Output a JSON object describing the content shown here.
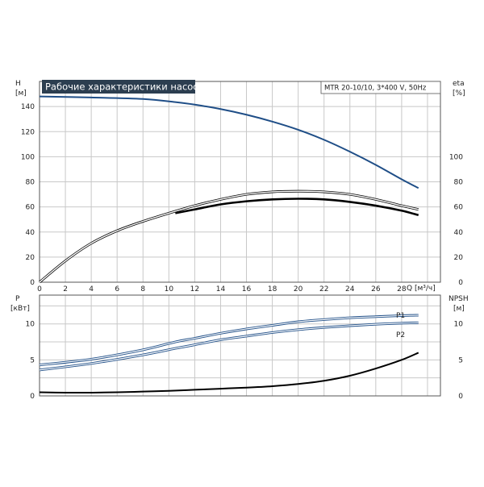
{
  "header": {
    "title": "Рабочие характеристики насоса",
    "model": "MTR 20-10/10, 3*400 V, 50Hz"
  },
  "colors": {
    "blue": "#1f4e87",
    "black": "#000000",
    "grid": "#c8c8c8",
    "title_bg": "#2c3e50"
  },
  "chart_data": [
    {
      "type": "line",
      "name": "head-efficiency",
      "x_ticks": [
        0,
        2,
        4,
        6,
        8,
        10,
        12,
        14,
        16,
        18,
        20,
        22,
        24,
        26,
        28
      ],
      "xlabel": "Q [м³/ч]",
      "xlim": [
        0,
        31
      ],
      "y_left": {
        "label": [
          "H",
          "[м]"
        ],
        "ticks": [
          0,
          20,
          40,
          60,
          80,
          100,
          120,
          140
        ],
        "lim": [
          0,
          160
        ]
      },
      "y_right": {
        "label": [
          "eta",
          "[%]"
        ],
        "ticks": [
          0,
          20,
          40,
          60,
          80,
          100
        ],
        "lim": [
          0,
          160
        ]
      },
      "grid": true,
      "series": [
        {
          "axis": "left",
          "style": "blue",
          "x": [
            0,
            4,
            8,
            10.5,
            12,
            14,
            16,
            18,
            20,
            22,
            24,
            26,
            28,
            29.3
          ],
          "y": [
            148,
            147.2,
            146,
            143.5,
            141.5,
            138,
            133.5,
            128,
            121.5,
            113.5,
            104,
            93.5,
            82,
            75
          ]
        },
        {
          "axis": "right",
          "style": "black-outline",
          "x": [
            0,
            2,
            4,
            6,
            8,
            10,
            12,
            14,
            16,
            18,
            20,
            22,
            24,
            26,
            28,
            29.3
          ],
          "y": [
            0,
            17,
            31,
            41,
            48.5,
            55,
            61,
            66,
            70,
            72,
            72.5,
            72,
            70,
            66,
            61,
            58
          ]
        },
        {
          "axis": "right",
          "style": "black-thick",
          "x": [
            10.5,
            12,
            14,
            16,
            18,
            20,
            22,
            24,
            26,
            28,
            29.3
          ],
          "y": [
            55,
            58,
            62,
            64.5,
            66,
            66.5,
            66,
            64,
            61,
            57,
            53.5
          ]
        }
      ]
    },
    {
      "type": "line",
      "name": "power-npsh",
      "x_ticks": [
        0,
        2,
        4,
        6,
        8,
        10,
        12,
        14,
        16,
        18,
        20,
        22,
        24,
        26,
        28
      ],
      "xlim": [
        0,
        31
      ],
      "y_left": {
        "label": [
          "P",
          "[кВт]"
        ],
        "ticks": [
          0,
          5,
          10
        ],
        "lim": [
          0,
          14
        ]
      },
      "y_right": {
        "label": [
          "NPSH",
          "[м]"
        ],
        "ticks": [
          0,
          5,
          10
        ],
        "lim": [
          0,
          14
        ]
      },
      "grid": true,
      "series": [
        {
          "name": "P1",
          "axis": "left",
          "style": "blue-outline",
          "x": [
            0,
            4,
            8,
            10.5,
            12,
            14,
            16,
            18,
            20,
            22,
            24,
            26,
            28,
            29.3
          ],
          "y": [
            4.3,
            5.1,
            6.4,
            7.5,
            8.0,
            8.7,
            9.3,
            9.8,
            10.3,
            10.6,
            10.85,
            11.0,
            11.15,
            11.2
          ]
        },
        {
          "name": "P2",
          "axis": "left",
          "style": "blue-outline",
          "x": [
            0,
            4,
            8,
            10.5,
            12,
            14,
            16,
            18,
            20,
            22,
            24,
            26,
            28,
            29.3
          ],
          "y": [
            3.6,
            4.5,
            5.7,
            6.6,
            7.1,
            7.8,
            8.3,
            8.8,
            9.2,
            9.5,
            9.75,
            9.95,
            10.1,
            10.15
          ]
        },
        {
          "axis": "right",
          "style": "black",
          "x": [
            0,
            2,
            4,
            6,
            8,
            10,
            12,
            14,
            16,
            18,
            20,
            22,
            24,
            26,
            28,
            29.3
          ],
          "y": [
            0.5,
            0.45,
            0.45,
            0.5,
            0.6,
            0.7,
            0.85,
            1.0,
            1.15,
            1.35,
            1.65,
            2.1,
            2.8,
            3.8,
            5.0,
            6.0
          ]
        }
      ]
    }
  ]
}
